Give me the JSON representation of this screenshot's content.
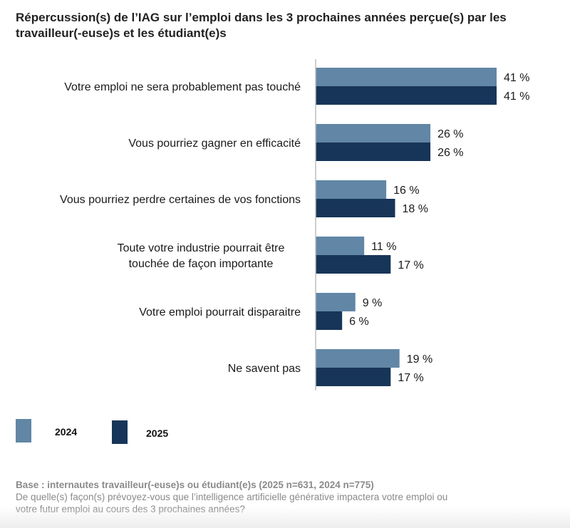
{
  "chart_data": {
    "type": "bar",
    "orientation": "horizontal",
    "title": "Répercussion(s) de l’IAG sur l’emploi dans les 3 prochaines années perçue(s) par les travailleur(-euse)s et les étudiant(e)s",
    "xlabel": "",
    "ylabel": "",
    "xlim": [
      0,
      50
    ],
    "grid": false,
    "legend_position": "bottom-left",
    "value_suffix": " %",
    "categories": [
      [
        "Votre emploi ne sera probablement pas touché"
      ],
      [
        "Vous pourriez gagner en efficacité"
      ],
      [
        "Vous pourriez perdre certaines de vos fonctions"
      ],
      [
        "Toute votre industrie pourrait être",
        "touchée de façon importante"
      ],
      [
        "Votre emploi pourrait disparaitre"
      ],
      [
        "Ne savent pas"
      ]
    ],
    "series": [
      {
        "name": "2024",
        "color": "#6186a6",
        "values": [
          41,
          26,
          16,
          11,
          9,
          19
        ],
        "labels": [
          "41 %",
          "26 %",
          "16 %",
          "11 %",
          "9 %",
          "19 %"
        ]
      },
      {
        "name": "2025",
        "color": "#173559",
        "values": [
          41,
          26,
          18,
          17,
          6,
          17
        ],
        "labels": [
          "41 %",
          "26 %",
          "18 %",
          "17 %",
          "6 %",
          "17 %"
        ]
      }
    ]
  },
  "legend": [
    {
      "label": "2024",
      "color": "#6186a6"
    },
    {
      "label": "2025",
      "color": "#173559"
    }
  ],
  "footnote": {
    "base": "Base : internautes travailleur(-euse)s ou étudiant(e)s (2025 n=631, 2024 n=775)",
    "question_line1": "De quelle(s) façon(s) prévoyez-vous que l’intelligence artificielle générative impactera votre emploi ou",
    "question_line2": "votre futur emploi au cours des 3 prochaines années?"
  }
}
